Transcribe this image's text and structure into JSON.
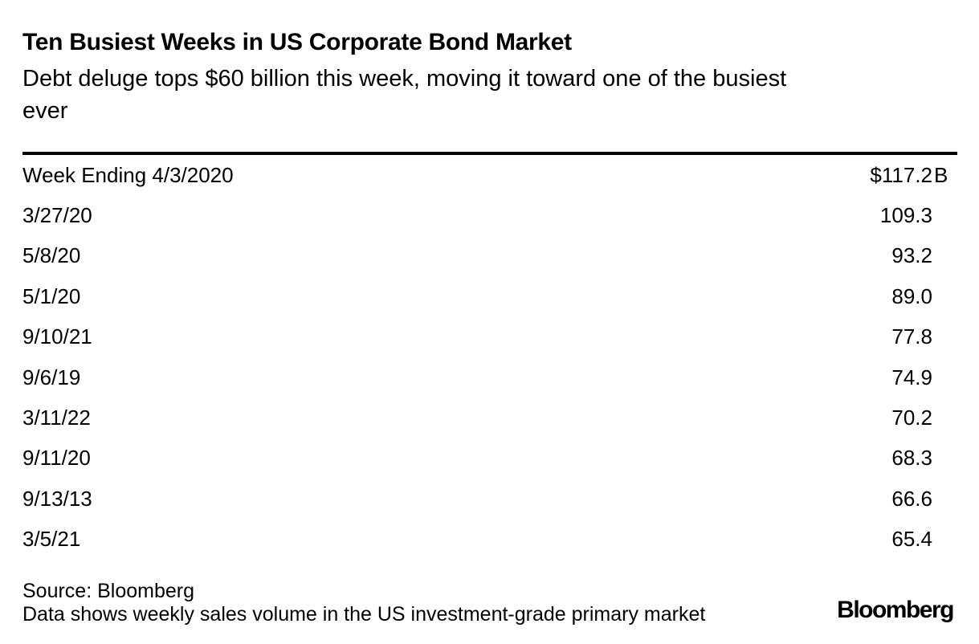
{
  "header": {
    "title": "Ten Busiest Weeks in US Corporate Bond Market",
    "subtitle_lines": [
      "Debt deluge tops $60 billion this week, moving it toward one of the busiest",
      "ever"
    ]
  },
  "table": {
    "rows": [
      {
        "label": "Week Ending 4/3/2020",
        "value": "$117.2",
        "suffix": "B"
      },
      {
        "label": "3/27/20",
        "value": "109.3",
        "suffix": ""
      },
      {
        "label": "5/8/20",
        "value": "93.2",
        "suffix": ""
      },
      {
        "label": "5/1/20",
        "value": "89.0",
        "suffix": ""
      },
      {
        "label": "9/10/21",
        "value": "77.8",
        "suffix": ""
      },
      {
        "label": "9/6/19",
        "value": "74.9",
        "suffix": ""
      },
      {
        "label": "3/11/22",
        "value": "70.2",
        "suffix": ""
      },
      {
        "label": "9/11/20",
        "value": "68.3",
        "suffix": ""
      },
      {
        "label": "9/13/13",
        "value": "66.6",
        "suffix": ""
      },
      {
        "label": "3/5/21",
        "value": "65.4",
        "suffix": ""
      }
    ]
  },
  "footer": {
    "source": "Source: Bloomberg",
    "note": "Data shows weekly sales volume in the US investment-grade primary market",
    "brand": "Bloomberg"
  },
  "colors": {
    "text": "#000000",
    "background": "#ffffff",
    "rule": "#000000"
  },
  "chart_data": {
    "type": "table",
    "title": "Ten Busiest Weeks in US Corporate Bond Market",
    "subtitle": "Debt deluge tops $60 billion this week, moving it toward one of the busiest ever",
    "categories": [
      "Week Ending 4/3/2020",
      "3/27/20",
      "5/8/20",
      "5/1/20",
      "9/10/21",
      "9/6/19",
      "3/11/22",
      "9/11/20",
      "9/13/13",
      "3/5/21"
    ],
    "values": [
      117.2,
      109.3,
      93.2,
      89.0,
      77.8,
      74.9,
      70.2,
      68.3,
      66.6,
      65.4
    ],
    "value_labels": [
      "$117.2B",
      "109.3",
      "93.2",
      "89.0",
      "77.8",
      "74.9",
      "70.2",
      "68.3",
      "66.6",
      "65.4"
    ],
    "unit": "billions of US dollars",
    "source": "Source: Bloomberg",
    "note": "Data shows weekly sales volume in the US investment-grade primary market"
  }
}
